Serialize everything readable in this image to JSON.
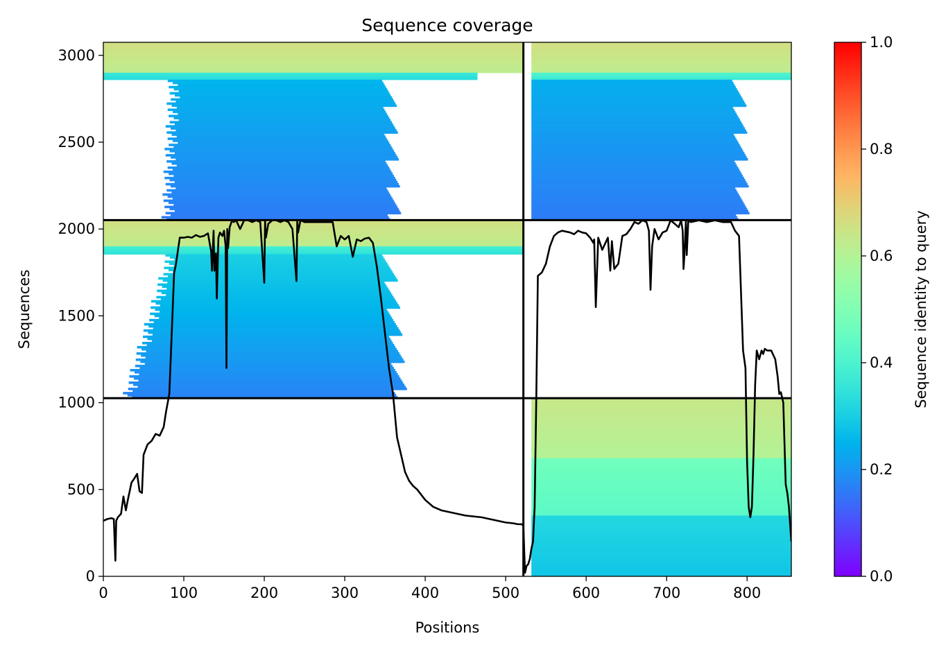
{
  "chart_data": {
    "type": "heatmap",
    "title": "Sequence coverage",
    "xlabel": "Positions",
    "ylabel": "Sequences",
    "xlim": [
      0,
      855
    ],
    "ylim": [
      0,
      3075
    ],
    "x_ticks": [
      0,
      100,
      200,
      300,
      400,
      500,
      600,
      700,
      800
    ],
    "x_tick_labels": [
      "0",
      "100",
      "200",
      "300",
      "400",
      "500",
      "600",
      "700",
      "800"
    ],
    "y_ticks": [
      0,
      500,
      1000,
      1500,
      2000,
      2500,
      3000
    ],
    "y_tick_labels": [
      "0",
      "500",
      "1000",
      "1500",
      "2000",
      "2500",
      "3000"
    ],
    "boundaries": {
      "vertical_x": 522,
      "horizontal_y": [
        1026,
        2051
      ]
    },
    "colorbar": {
      "label": "Sequence identity to query",
      "colormap": "rainbow",
      "range": [
        0.0,
        1.0
      ],
      "ticks": [
        0.0,
        0.2,
        0.4,
        0.6,
        0.8,
        1.0
      ],
      "tick_labels": [
        "0.0",
        "0.2",
        "0.4",
        "0.6",
        "0.8",
        "1.0"
      ]
    },
    "coverage_blocks": [
      {
        "id": "upper-left",
        "x_range": [
          0,
          522
        ],
        "y_range": [
          2051,
          3075
        ],
        "bands": [
          {
            "y": [
              2900,
              3075
            ],
            "start": [
              0,
              0
            ],
            "end": [
              522,
              522
            ],
            "identity": 0.64
          },
          {
            "y": [
              2860,
              2900
            ],
            "start": [
              0,
              0
            ],
            "end": [
              465,
              465
            ],
            "identity": 0.34
          },
          {
            "y": [
              2051,
              2860
            ],
            "start": [
              88,
              80
            ],
            "end": [
              355,
              362
            ],
            "identity": [
              0.16,
              0.25
            ]
          }
        ]
      },
      {
        "id": "upper-right",
        "x_range": [
          522,
          855
        ],
        "y_range": [
          2051,
          3075
        ],
        "bands": [
          {
            "y": [
              2900,
              3075
            ],
            "start": [
              532,
              532
            ],
            "end": [
              855,
              855
            ],
            "identity": 0.64
          },
          {
            "y": [
              2860,
              2900
            ],
            "start": [
              532,
              532
            ],
            "end": [
              855,
              855
            ],
            "identity": 0.38
          },
          {
            "y": [
              2051,
              2860
            ],
            "start": [
              532,
              532
            ],
            "end": [
              790,
              795
            ],
            "identity": [
              0.16,
              0.24
            ]
          }
        ]
      },
      {
        "id": "middle-left",
        "x_range": [
          0,
          522
        ],
        "y_range": [
          1026,
          2051
        ],
        "bands": [
          {
            "y": [
              1900,
              2051
            ],
            "start": [
              0,
              0
            ],
            "end": [
              522,
              522
            ],
            "identity": 0.64
          },
          {
            "y": [
              1855,
              1900
            ],
            "start": [
              0,
              0
            ],
            "end": [
              522,
              522
            ],
            "identity": 0.36
          },
          {
            "y": [
              1026,
              1855
            ],
            "start": [
              85,
              30
            ],
            "end": [
              355,
              370
            ],
            "identity": [
              0.17,
              0.3
            ]
          }
        ]
      },
      {
        "id": "lower-right",
        "x_range": [
          522,
          855
        ],
        "y_range": [
          0,
          1026
        ],
        "bands": [
          {
            "y": [
              680,
              1026
            ],
            "start": [
              532,
              532
            ],
            "end": [
              855,
              855
            ],
            "identity": 0.62
          },
          {
            "y": [
              350,
              680
            ],
            "start": [
              532,
              532
            ],
            "end": [
              855,
              855
            ],
            "identity": 0.45
          },
          {
            "y": [
              0,
              350
            ],
            "start": [
              532,
              532
            ],
            "end": [
              855,
              855
            ],
            "identity": 0.3
          }
        ]
      }
    ],
    "coverage_line": {
      "x": [
        0,
        5,
        10,
        13,
        15,
        16,
        18,
        22,
        25,
        28,
        30,
        35,
        38,
        42,
        45,
        48,
        50,
        55,
        60,
        65,
        70,
        75,
        78,
        80,
        82,
        85,
        88,
        90,
        95,
        100,
        105,
        110,
        115,
        120,
        125,
        130,
        134,
        135,
        137,
        138,
        140,
        141,
        143,
        145,
        148,
        150,
        152,
        153,
        154,
        155,
        157,
        160,
        162,
        165,
        170,
        175,
        180,
        185,
        190,
        195,
        200,
        201,
        202,
        205,
        210,
        215,
        220,
        225,
        230,
        235,
        240,
        241,
        242,
        245,
        250,
        260,
        270,
        280,
        285,
        290,
        295,
        300,
        305,
        310,
        315,
        320,
        325,
        330,
        335,
        340,
        345,
        350,
        355,
        360,
        362,
        365,
        370,
        375,
        380,
        385,
        390,
        400,
        410,
        420,
        430,
        440,
        450,
        460,
        470,
        480,
        490,
        500,
        510,
        515,
        520,
        522,
        524,
        526,
        528,
        530,
        532,
        534,
        536,
        538,
        540,
        545,
        550,
        555,
        560,
        565,
        570,
        575,
        580,
        585,
        590,
        595,
        600,
        605,
        609,
        610,
        612,
        615,
        620,
        625,
        627,
        630,
        632,
        635,
        640,
        645,
        650,
        655,
        660,
        665,
        670,
        675,
        678,
        680,
        682,
        685,
        690,
        695,
        700,
        705,
        710,
        715,
        718,
        720,
        721,
        722,
        724,
        725,
        727,
        730,
        740,
        750,
        760,
        770,
        780,
        785,
        790,
        795,
        798,
        800,
        802,
        804,
        806,
        808,
        810,
        812,
        815,
        818,
        820,
        822,
        825,
        830,
        835,
        838,
        840,
        842,
        845,
        848,
        850,
        852,
        855
      ],
      "y": [
        320,
        330,
        335,
        330,
        90,
        320,
        340,
        360,
        460,
        380,
        430,
        540,
        560,
        590,
        490,
        480,
        700,
        760,
        780,
        820,
        810,
        860,
        950,
        1000,
        1050,
        1400,
        1750,
        1790,
        1950,
        1950,
        1955,
        1950,
        1965,
        1955,
        1960,
        1975,
        1870,
        1760,
        1990,
        1760,
        1860,
        1600,
        1950,
        1980,
        1960,
        1990,
        1900,
        1200,
        2000,
        1890,
        2010,
        2050,
        2040,
        2050,
        2000,
        2050,
        2050,
        2040,
        2050,
        2040,
        1690,
        2050,
        1950,
        2030,
        2050,
        2050,
        2040,
        2050,
        2040,
        2000,
        1700,
        2050,
        1980,
        2050,
        2040,
        2040,
        2040,
        2040,
        2040,
        1900,
        1960,
        1940,
        1960,
        1840,
        1940,
        1930,
        1945,
        1950,
        1920,
        1780,
        1600,
        1400,
        1200,
        1050,
        950,
        800,
        700,
        600,
        550,
        520,
        500,
        440,
        400,
        380,
        370,
        360,
        350,
        345,
        340,
        330,
        320,
        310,
        305,
        300,
        300,
        290,
        20,
        60,
        70,
        100,
        160,
        200,
        400,
        1010,
        1730,
        1750,
        1800,
        1900,
        1960,
        1980,
        1990,
        1985,
        1980,
        1970,
        1990,
        1980,
        1975,
        1950,
        1920,
        1940,
        1550,
        1950,
        1880,
        1930,
        1950,
        1760,
        1930,
        1770,
        1800,
        1960,
        1970,
        2000,
        2040,
        2030,
        2050,
        2040,
        1990,
        1650,
        1900,
        2000,
        1940,
        1980,
        1990,
        2050,
        2030,
        2010,
        2050,
        1990,
        1770,
        1840,
        2050,
        1850,
        2050,
        2040,
        2050,
        2040,
        2050,
        2040,
        2040,
        1990,
        1960,
        1300,
        1200,
        660,
        400,
        340,
        400,
        700,
        1100,
        1300,
        1250,
        1300,
        1280,
        1310,
        1300,
        1300,
        1250,
        1150,
        1050,
        1060,
        1000,
        530,
        480,
        400,
        200
      ]
    }
  }
}
